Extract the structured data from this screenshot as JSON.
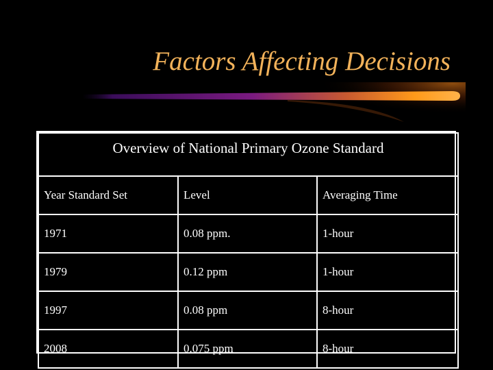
{
  "slide": {
    "title": "Factors Affecting Decisions"
  },
  "table": {
    "caption": "Overview of National Primary Ozone Standard",
    "headers": [
      "Year Standard Set",
      "Level",
      "Averaging Time"
    ],
    "rows": [
      [
        "1971",
        "0.08 ppm.",
        "1-hour"
      ],
      [
        "1979",
        "0.12 ppm",
        "1-hour"
      ],
      [
        "1997",
        "0.08 ppm",
        "8-hour"
      ],
      [
        "2008",
        "0.075 ppm",
        "8-hour"
      ]
    ]
  },
  "colors": {
    "background": "#000000",
    "title": "#f2b25a",
    "accent_warm": "#ff9a1a",
    "accent_cool": "#6a1a9a",
    "table_text": "#ffffff"
  }
}
